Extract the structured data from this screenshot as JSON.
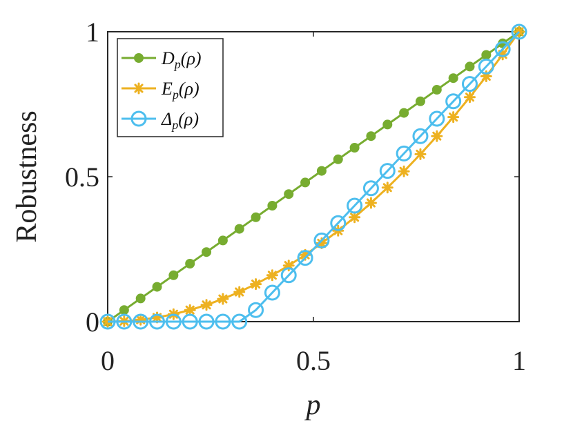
{
  "chart_data": {
    "type": "line",
    "xlabel": "p",
    "ylabel": "Robustness",
    "xlim": [
      0,
      1
    ],
    "ylim": [
      0,
      1
    ],
    "xticks": [
      {
        "value": 0,
        "label": "0"
      },
      {
        "value": 0.5,
        "label": "0.5"
      },
      {
        "value": 1,
        "label": "1"
      }
    ],
    "yticks": [
      {
        "value": 0,
        "label": "0"
      },
      {
        "value": 0.5,
        "label": "0.5"
      },
      {
        "value": 1,
        "label": "1"
      }
    ],
    "grid": false,
    "legend_position": "top-left",
    "x": [
      0,
      0.04,
      0.08,
      0.12,
      0.16,
      0.2,
      0.24,
      0.28,
      0.32,
      0.36,
      0.4,
      0.44,
      0.48,
      0.52,
      0.56,
      0.6,
      0.64,
      0.68,
      0.72,
      0.76,
      0.8,
      0.84,
      0.88,
      0.92,
      0.96,
      1.0
    ],
    "series": [
      {
        "name_main": "D",
        "name_sub": "p",
        "name_arg": "(ρ)",
        "marker": "dot",
        "color": "#77AC30",
        "values": [
          0,
          0.04,
          0.08,
          0.12,
          0.16,
          0.2,
          0.24,
          0.28,
          0.32,
          0.36,
          0.4,
          0.44,
          0.48,
          0.52,
          0.56,
          0.6,
          0.64,
          0.68,
          0.72,
          0.76,
          0.8,
          0.84,
          0.88,
          0.92,
          0.96,
          1.0
        ]
      },
      {
        "name_main": "E",
        "name_sub": "p",
        "name_arg": "(ρ)",
        "marker": "star",
        "color": "#EDB120",
        "values": [
          0,
          0.0016,
          0.0064,
          0.0144,
          0.0256,
          0.04,
          0.0576,
          0.0784,
          0.1024,
          0.1296,
          0.16,
          0.1936,
          0.2304,
          0.2704,
          0.3136,
          0.36,
          0.4096,
          0.4624,
          0.5184,
          0.5776,
          0.64,
          0.7056,
          0.7744,
          0.8464,
          0.9216,
          1.0
        ]
      },
      {
        "name_main": "Δ",
        "name_sub": "p",
        "name_arg": "(ρ)",
        "marker": "circle",
        "color": "#4DBEEE",
        "values": [
          0,
          0,
          0,
          0,
          0,
          0,
          0,
          0,
          0,
          0.04,
          0.1,
          0.16,
          0.22,
          0.28,
          0.34,
          0.4,
          0.46,
          0.52,
          0.58,
          0.64,
          0.7,
          0.76,
          0.82,
          0.88,
          0.94,
          1.0
        ]
      }
    ]
  }
}
